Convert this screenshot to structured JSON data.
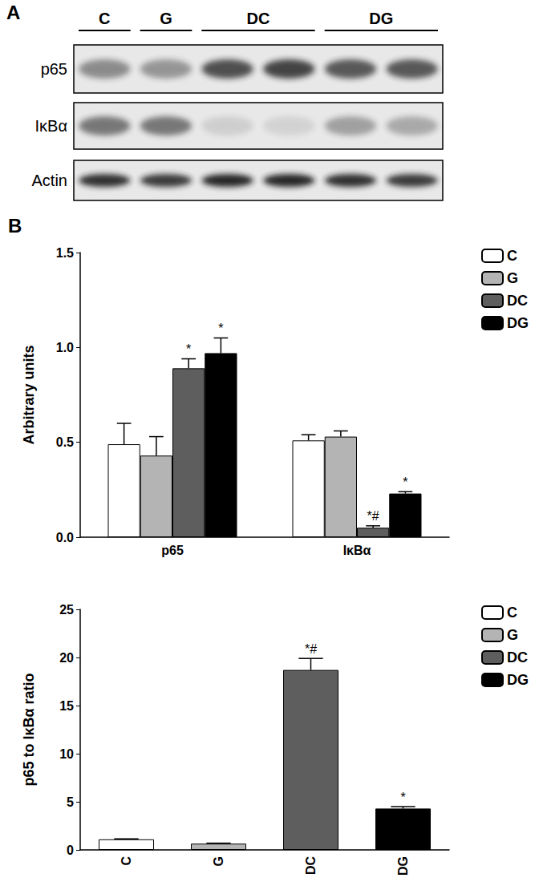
{
  "figure": {
    "panel_labels": [
      "A",
      "B"
    ]
  },
  "blot": {
    "groups": [
      {
        "label": "C",
        "lanes": 1
      },
      {
        "label": "G",
        "lanes": 1
      },
      {
        "label": "DC",
        "lanes": 2
      },
      {
        "label": "DG",
        "lanes": 2
      }
    ],
    "rows": [
      "p65",
      "IκBα",
      "Actin"
    ]
  },
  "chart_data": [
    {
      "type": "bar",
      "categories": [
        "p65",
        "IκBα"
      ],
      "series": [
        {
          "name": "C",
          "color": "#ffffff",
          "values": [
            0.49,
            0.51
          ],
          "errors": [
            0.11,
            0.03
          ],
          "annotations": [
            null,
            null
          ]
        },
        {
          "name": "G",
          "color": "#b4b4b4",
          "values": [
            0.43,
            0.53
          ],
          "errors": [
            0.1,
            0.03
          ],
          "annotations": [
            null,
            null
          ]
        },
        {
          "name": "DC",
          "color": "#5e5e5e",
          "values": [
            0.89,
            0.05
          ],
          "errors": [
            0.05,
            0.01
          ],
          "annotations": [
            "*",
            "*#"
          ]
        },
        {
          "name": "DG",
          "color": "#000000",
          "values": [
            0.97,
            0.23
          ],
          "errors": [
            0.08,
            0.01
          ],
          "annotations": [
            "*",
            "*"
          ]
        }
      ],
      "ylabel": "Arbitrary units",
      "ylim": [
        0,
        1.5
      ],
      "yticks": [
        {
          "value": 0,
          "label": "0.0"
        },
        {
          "value": 0.5,
          "label": "0.5"
        },
        {
          "value": 1,
          "label": "1.0"
        },
        {
          "value": 1.5,
          "label": "1.5"
        }
      ],
      "legend": "right",
      "grid": false
    },
    {
      "type": "bar",
      "categories": [
        "C",
        "G",
        "DC",
        "DG"
      ],
      "values": [
        1.1,
        0.65,
        18.7,
        4.3
      ],
      "errors": [
        0.05,
        0.05,
        1.2,
        0.2
      ],
      "colors": [
        "#ffffff",
        "#b4b4b4",
        "#5e5e5e",
        "#000000"
      ],
      "annotations": [
        null,
        null,
        "*#",
        "*"
      ],
      "ylabel": "p65 to IκBα ratio",
      "ylim": [
        0,
        25
      ],
      "yticks": [
        0,
        5,
        10,
        15,
        20,
        25
      ],
      "legend": "right",
      "grid": false
    }
  ]
}
